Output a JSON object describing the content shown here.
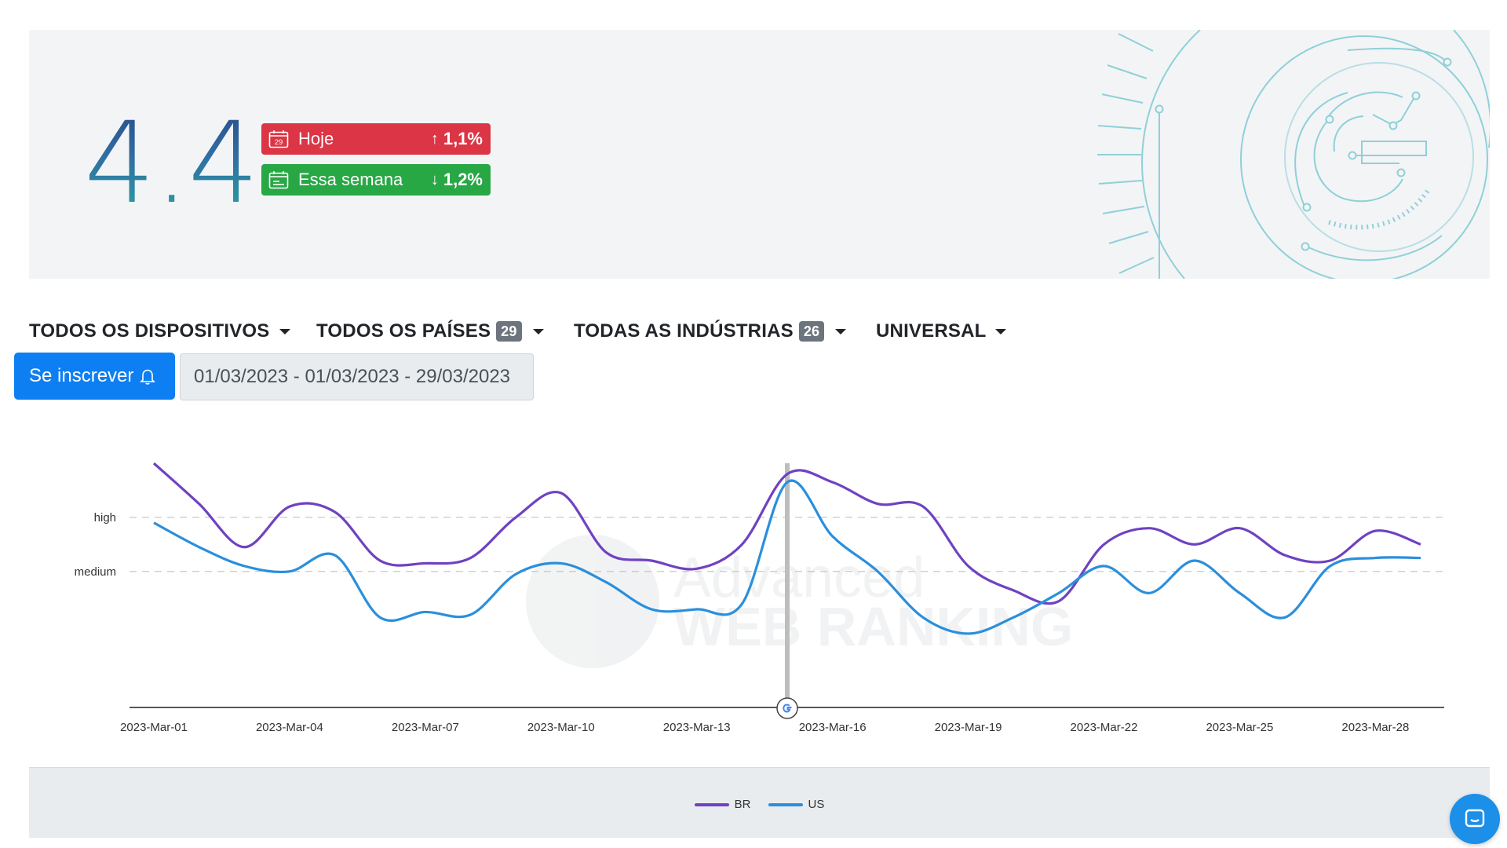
{
  "hero": {
    "score": "4.4",
    "today": {
      "label": "Hoje",
      "change": "1,1%",
      "direction": "up",
      "calendar_day": "29",
      "color": "#dc3545"
    },
    "week": {
      "label": "Essa semana",
      "change": "1,2%",
      "direction": "down",
      "color": "#28a745"
    }
  },
  "filters": {
    "devices": {
      "label": "TODOS OS DISPOSITIVOS"
    },
    "countries": {
      "label": "TODOS OS PAÍSES",
      "count": "29"
    },
    "industries": {
      "label": "TODAS AS INDÚSTRIAS",
      "count": "26"
    },
    "universal": {
      "label": "UNIVERSAL"
    }
  },
  "subscribe": {
    "label": "Se inscrever",
    "icon": "bell-icon"
  },
  "date_range": "01/03/2023 - 01/03/2023 - 29/03/2023",
  "watermark": {
    "line1": "Advanced",
    "line2": "WEB RANKING"
  },
  "chart_data": {
    "type": "line",
    "x": [
      "2023-Mar-01",
      "2023-Mar-02",
      "2023-Mar-03",
      "2023-Mar-04",
      "2023-Mar-05",
      "2023-Mar-06",
      "2023-Mar-07",
      "2023-Mar-08",
      "2023-Mar-09",
      "2023-Mar-10",
      "2023-Mar-11",
      "2023-Mar-12",
      "2023-Mar-13",
      "2023-Mar-14",
      "2023-Mar-15",
      "2023-Mar-16",
      "2023-Mar-17",
      "2023-Mar-18",
      "2023-Mar-19",
      "2023-Mar-20",
      "2023-Mar-21",
      "2023-Mar-22",
      "2023-Mar-23",
      "2023-Mar-24",
      "2023-Mar-25",
      "2023-Mar-26",
      "2023-Mar-27",
      "2023-Mar-28",
      "2023-Mar-29"
    ],
    "tick_labels": [
      "2023-Mar-01",
      "2023-Mar-04",
      "2023-Mar-07",
      "2023-Mar-10",
      "2023-Mar-13",
      "2023-Mar-16",
      "2023-Mar-19",
      "2023-Mar-22",
      "2023-Mar-25",
      "2023-Mar-28"
    ],
    "y_tick_labels": [
      {
        "label": "high",
        "value": 7
      },
      {
        "label": "medium",
        "value": 5
      }
    ],
    "ylim": [
      0,
      9
    ],
    "grid": "dashed horizontal at high and medium",
    "legend_position": "bottom-center",
    "series": [
      {
        "name": "BR",
        "color": "#6f42c1",
        "values": [
          9.0,
          7.5,
          5.9,
          7.4,
          7.2,
          5.4,
          5.3,
          5.5,
          7.0,
          7.9,
          5.7,
          5.4,
          5.1,
          6.0,
          8.6,
          8.3,
          7.5,
          7.4,
          5.2,
          4.3,
          3.9,
          6.0,
          6.6,
          6.0,
          6.6,
          5.6,
          5.4,
          6.5,
          6.0
        ]
      },
      {
        "name": "US",
        "color": "#2a8fdc",
        "values": [
          6.8,
          5.9,
          5.2,
          5.0,
          5.6,
          3.3,
          3.5,
          3.4,
          4.9,
          5.3,
          4.6,
          3.6,
          3.6,
          3.8,
          8.3,
          6.3,
          5.0,
          3.3,
          2.7,
          3.3,
          4.2,
          5.2,
          4.2,
          5.4,
          4.2,
          3.3,
          5.2,
          5.5,
          5.5
        ]
      }
    ],
    "marker": {
      "x": "2023-Mar-15",
      "icon": "google-icon"
    }
  }
}
